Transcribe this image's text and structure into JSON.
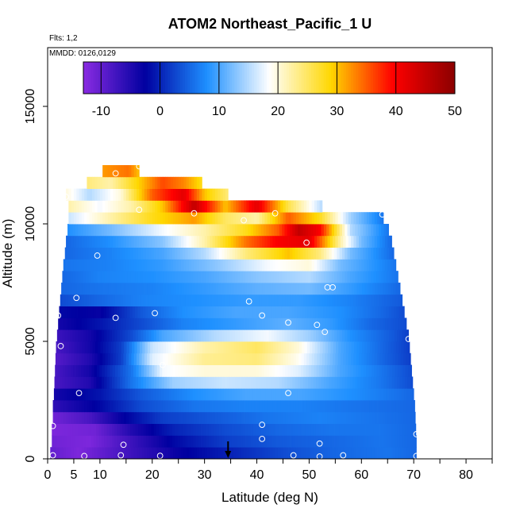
{
  "chart_data": {
    "type": "heatmap",
    "title": "ATOM2 Northeast_Pacific_1 U",
    "flights_label": "Flts: 1,2",
    "dates_label": "MMDD: 0126,0129",
    "xlabel": "Latitude (deg N)",
    "ylabel": "Altitude (m)",
    "xlim": [
      0,
      85
    ],
    "ylim": [
      0,
      17500
    ],
    "xticks": [
      0,
      5,
      10,
      20,
      30,
      40,
      50,
      60,
      70,
      80
    ],
    "xtick_labels": [
      "0",
      "5",
      "10",
      "20",
      "30",
      "40",
      "50",
      "60",
      "70",
      "80"
    ],
    "yticks": [
      0,
      5000,
      10000,
      15000
    ],
    "ytick_labels": [
      "0",
      "5000",
      "10000",
      "15000"
    ],
    "colorbar": {
      "range": [
        -13,
        50
      ],
      "ticks": [
        -10,
        0,
        10,
        20,
        30,
        40,
        50
      ],
      "tick_labels": [
        "-10",
        "0",
        "10",
        "20",
        "30",
        "40",
        "50"
      ],
      "colors": [
        "#8a2be2",
        "#0000a0",
        "#1e90ff",
        "#ffffff",
        "#ffd700",
        "#ff0000",
        "#8b0000"
      ]
    },
    "layers": [
      {
        "alt": 250,
        "x0": 0.5,
        "x1": 70.5,
        "v": [
          [
            0.5,
            -10
          ],
          [
            6,
            -12
          ],
          [
            14,
            -8
          ],
          [
            25,
            -3
          ],
          [
            35,
            0
          ],
          [
            45,
            3
          ],
          [
            55,
            5
          ],
          [
            65,
            6
          ],
          [
            70.5,
            5
          ]
        ]
      },
      {
        "alt": 750,
        "x0": 0.8,
        "x1": 70.5,
        "v": [
          [
            0.8,
            -11
          ],
          [
            8,
            -12
          ],
          [
            16,
            -7
          ],
          [
            24,
            -2
          ],
          [
            34,
            2
          ],
          [
            44,
            4
          ],
          [
            54,
            5
          ],
          [
            64,
            6
          ],
          [
            70.5,
            5
          ]
        ]
      },
      {
        "alt": 1250,
        "x0": 0.8,
        "x1": 70.4,
        "v": [
          [
            0.8,
            -12
          ],
          [
            9,
            -11
          ],
          [
            16,
            -5
          ],
          [
            24,
            0
          ],
          [
            34,
            3
          ],
          [
            44,
            5
          ],
          [
            54,
            6
          ],
          [
            64,
            6
          ],
          [
            70.4,
            5
          ]
        ]
      },
      {
        "alt": 1750,
        "x0": 1,
        "x1": 70.3,
        "v": [
          [
            1,
            -11
          ],
          [
            8,
            -8
          ],
          [
            14,
            -3
          ],
          [
            22,
            2
          ],
          [
            32,
            4
          ],
          [
            42,
            6
          ],
          [
            52,
            7
          ],
          [
            62,
            6
          ],
          [
            70.3,
            5
          ]
        ]
      },
      {
        "alt": 2250,
        "x0": 1,
        "x1": 70.2,
        "v": [
          [
            1,
            -6
          ],
          [
            10,
            -2
          ],
          [
            18,
            3
          ],
          [
            28,
            6
          ],
          [
            38,
            7
          ],
          [
            48,
            7
          ],
          [
            58,
            6
          ],
          [
            70.2,
            5
          ]
        ]
      },
      {
        "alt": 2750,
        "x0": 1.2,
        "x1": 70,
        "v": [
          [
            1.2,
            -4
          ],
          [
            10,
            -1
          ],
          [
            18,
            4
          ],
          [
            28,
            8
          ],
          [
            38,
            10
          ],
          [
            48,
            10
          ],
          [
            58,
            8
          ],
          [
            70,
            5
          ]
        ]
      },
      {
        "alt": 3250,
        "x0": 1.3,
        "x1": 69.8,
        "v": [
          [
            1.3,
            -8
          ],
          [
            8,
            -5
          ],
          [
            16,
            6
          ],
          [
            24,
            14
          ],
          [
            34,
            16
          ],
          [
            44,
            15
          ],
          [
            54,
            10
          ],
          [
            64,
            6
          ],
          [
            69.8,
            3
          ]
        ]
      },
      {
        "alt": 3750,
        "x0": 1.4,
        "x1": 69.6,
        "v": [
          [
            1.4,
            -8
          ],
          [
            8,
            -4
          ],
          [
            16,
            6
          ],
          [
            22,
            18
          ],
          [
            30,
            20
          ],
          [
            40,
            20
          ],
          [
            48,
            17
          ],
          [
            56,
            10
          ],
          [
            64,
            6
          ],
          [
            69.6,
            3
          ]
        ]
      },
      {
        "alt": 4250,
        "x0": 1.5,
        "x1": 69.4,
        "v": [
          [
            1.5,
            -9
          ],
          [
            8,
            -5
          ],
          [
            14,
            2
          ],
          [
            20,
            17
          ],
          [
            30,
            23
          ],
          [
            40,
            24
          ],
          [
            48,
            19
          ],
          [
            56,
            10
          ],
          [
            64,
            5
          ],
          [
            69.4,
            2
          ]
        ]
      },
      {
        "alt": 4750,
        "x0": 1.6,
        "x1": 69.2,
        "v": [
          [
            1.6,
            -8
          ],
          [
            8,
            -4
          ],
          [
            14,
            2
          ],
          [
            20,
            16
          ],
          [
            30,
            22
          ],
          [
            40,
            25
          ],
          [
            48,
            20
          ],
          [
            56,
            10
          ],
          [
            64,
            5
          ],
          [
            69.2,
            2
          ]
        ]
      },
      {
        "alt": 5250,
        "x0": 1.8,
        "x1": 69,
        "v": [
          [
            1.8,
            -7
          ],
          [
            8,
            -4
          ],
          [
            16,
            3
          ],
          [
            22,
            10
          ],
          [
            32,
            15
          ],
          [
            42,
            18
          ],
          [
            50,
            14
          ],
          [
            58,
            8
          ],
          [
            66,
            4
          ],
          [
            69,
            2
          ]
        ]
      },
      {
        "alt": 5750,
        "x0": 2,
        "x1": 68.6,
        "v": [
          [
            2,
            -4
          ],
          [
            10,
            -1
          ],
          [
            18,
            3
          ],
          [
            26,
            7
          ],
          [
            36,
            9
          ],
          [
            46,
            11
          ],
          [
            54,
            9
          ],
          [
            62,
            5
          ],
          [
            68.6,
            3
          ]
        ]
      },
      {
        "alt": 6250,
        "x0": 2.2,
        "x1": 68.2,
        "v": [
          [
            2.2,
            -2
          ],
          [
            10,
            -3
          ],
          [
            18,
            4
          ],
          [
            26,
            8
          ],
          [
            36,
            10
          ],
          [
            46,
            10
          ],
          [
            56,
            8
          ],
          [
            64,
            5
          ],
          [
            68.2,
            3
          ]
        ]
      },
      {
        "alt": 6750,
        "x0": 2.4,
        "x1": 67.8,
        "v": [
          [
            2.4,
            3
          ],
          [
            10,
            5
          ],
          [
            18,
            7
          ],
          [
            28,
            8
          ],
          [
            38,
            9
          ],
          [
            48,
            9
          ],
          [
            58,
            7
          ],
          [
            67.8,
            4
          ]
        ]
      },
      {
        "alt": 7250,
        "x0": 2.6,
        "x1": 67.4,
        "v": [
          [
            2.6,
            5
          ],
          [
            10,
            6
          ],
          [
            20,
            7
          ],
          [
            30,
            9
          ],
          [
            40,
            11
          ],
          [
            50,
            12
          ],
          [
            58,
            9
          ],
          [
            67.4,
            5
          ]
        ]
      },
      {
        "alt": 7750,
        "x0": 2.8,
        "x1": 67,
        "v": [
          [
            2.8,
            5
          ],
          [
            10,
            7
          ],
          [
            20,
            8
          ],
          [
            30,
            10
          ],
          [
            40,
            13
          ],
          [
            50,
            15
          ],
          [
            58,
            10
          ],
          [
            67,
            6
          ]
        ]
      },
      {
        "alt": 8250,
        "x0": 3,
        "x1": 66.6,
        "v": [
          [
            3,
            6
          ],
          [
            12,
            7
          ],
          [
            22,
            9
          ],
          [
            32,
            13
          ],
          [
            42,
            18
          ],
          [
            50,
            20
          ],
          [
            56,
            12
          ],
          [
            66.6,
            6
          ]
        ]
      },
      {
        "alt": 8750,
        "x0": 3.3,
        "x1": 66.2,
        "v": [
          [
            3.3,
            5
          ],
          [
            12,
            7
          ],
          [
            22,
            10
          ],
          [
            30,
            15
          ],
          [
            38,
            24
          ],
          [
            46,
            30
          ],
          [
            52,
            24
          ],
          [
            58,
            12
          ],
          [
            66.2,
            5
          ]
        ]
      },
      {
        "alt": 9250,
        "x0": 3.5,
        "x1": 65.8,
        "v": [
          [
            3.5,
            5
          ],
          [
            12,
            8
          ],
          [
            22,
            13
          ],
          [
            30,
            22
          ],
          [
            38,
            34
          ],
          [
            44,
            40
          ],
          [
            50,
            42
          ],
          [
            56,
            22
          ],
          [
            60,
            12
          ],
          [
            65.8,
            5
          ]
        ]
      },
      {
        "alt": 9750,
        "x0": 3.8,
        "x1": 65.2,
        "v": [
          [
            3.8,
            8
          ],
          [
            12,
            12
          ],
          [
            22,
            18
          ],
          [
            30,
            22
          ],
          [
            38,
            28
          ],
          [
            44,
            35
          ],
          [
            48,
            45
          ],
          [
            52,
            40
          ],
          [
            58,
            15
          ],
          [
            65.2,
            6
          ]
        ]
      },
      {
        "alt": 10250,
        "x0": 4,
        "x1": 64.2,
        "v": [
          [
            4,
            16
          ],
          [
            12,
            22
          ],
          [
            20,
            28
          ],
          [
            28,
            32
          ],
          [
            34,
            25
          ],
          [
            40,
            22
          ],
          [
            46,
            35
          ],
          [
            52,
            28
          ],
          [
            58,
            14
          ],
          [
            64.2,
            6
          ]
        ]
      },
      {
        "alt": 10750,
        "x0": 4,
        "x1": 52.5,
        "v": [
          [
            4,
            22
          ],
          [
            10,
            18
          ],
          [
            16,
            22
          ],
          [
            22,
            30
          ],
          [
            28,
            45
          ],
          [
            34,
            30
          ],
          [
            40,
            42
          ],
          [
            46,
            26
          ],
          [
            52.5,
            15
          ]
        ]
      },
      {
        "alt": 11250,
        "x0": 3.5,
        "x1": 34.5,
        "v": [
          [
            3.5,
            20
          ],
          [
            8,
            15
          ],
          [
            14,
            20
          ],
          [
            20,
            35
          ],
          [
            26,
            42
          ],
          [
            30,
            30
          ],
          [
            34.5,
            24
          ]
        ]
      },
      {
        "alt": 11750,
        "x0": 7.5,
        "x1": 29.5,
        "v": [
          [
            7.5,
            24
          ],
          [
            12,
            22
          ],
          [
            18,
            30
          ],
          [
            22,
            36
          ],
          [
            26,
            33
          ],
          [
            29.5,
            28
          ]
        ]
      },
      {
        "alt": 12250,
        "x0": 10.5,
        "x1": 17.5,
        "v": [
          [
            10.5,
            32
          ],
          [
            13,
            33
          ],
          [
            15.5,
            34
          ],
          [
            17.5,
            30
          ]
        ]
      }
    ],
    "points": [
      [
        1,
        150
      ],
      [
        7,
        120
      ],
      [
        14,
        150
      ],
      [
        21.5,
        130
      ],
      [
        47,
        150
      ],
      [
        52,
        100
      ],
      [
        56.5,
        150
      ],
      [
        70.5,
        120
      ],
      [
        14.5,
        600
      ],
      [
        52,
        650
      ],
      [
        41,
        850
      ],
      [
        70.5,
        1050
      ],
      [
        1,
        1400
      ],
      [
        41,
        1450
      ],
      [
        6,
        2800
      ],
      [
        46,
        2800
      ],
      [
        22,
        4000
      ],
      [
        2.5,
        4800
      ],
      [
        69,
        5100
      ],
      [
        2,
        6100
      ],
      [
        13,
        6000
      ],
      [
        20.5,
        6200
      ],
      [
        41,
        6100
      ],
      [
        46,
        5800
      ],
      [
        51.5,
        5700
      ],
      [
        53,
        5400
      ],
      [
        5.5,
        6850
      ],
      [
        38.5,
        6700
      ],
      [
        53.5,
        7300
      ],
      [
        54.5,
        7300
      ],
      [
        9.5,
        8650
      ],
      [
        49.5,
        9200
      ],
      [
        17.5,
        10600
      ],
      [
        28,
        10450
      ],
      [
        37.5,
        10150
      ],
      [
        43.5,
        10450
      ],
      [
        64,
        10400
      ],
      [
        3.5,
        11150
      ],
      [
        13,
        12150
      ],
      [
        17.5,
        12450
      ]
    ],
    "arrow_x": 34.5
  }
}
